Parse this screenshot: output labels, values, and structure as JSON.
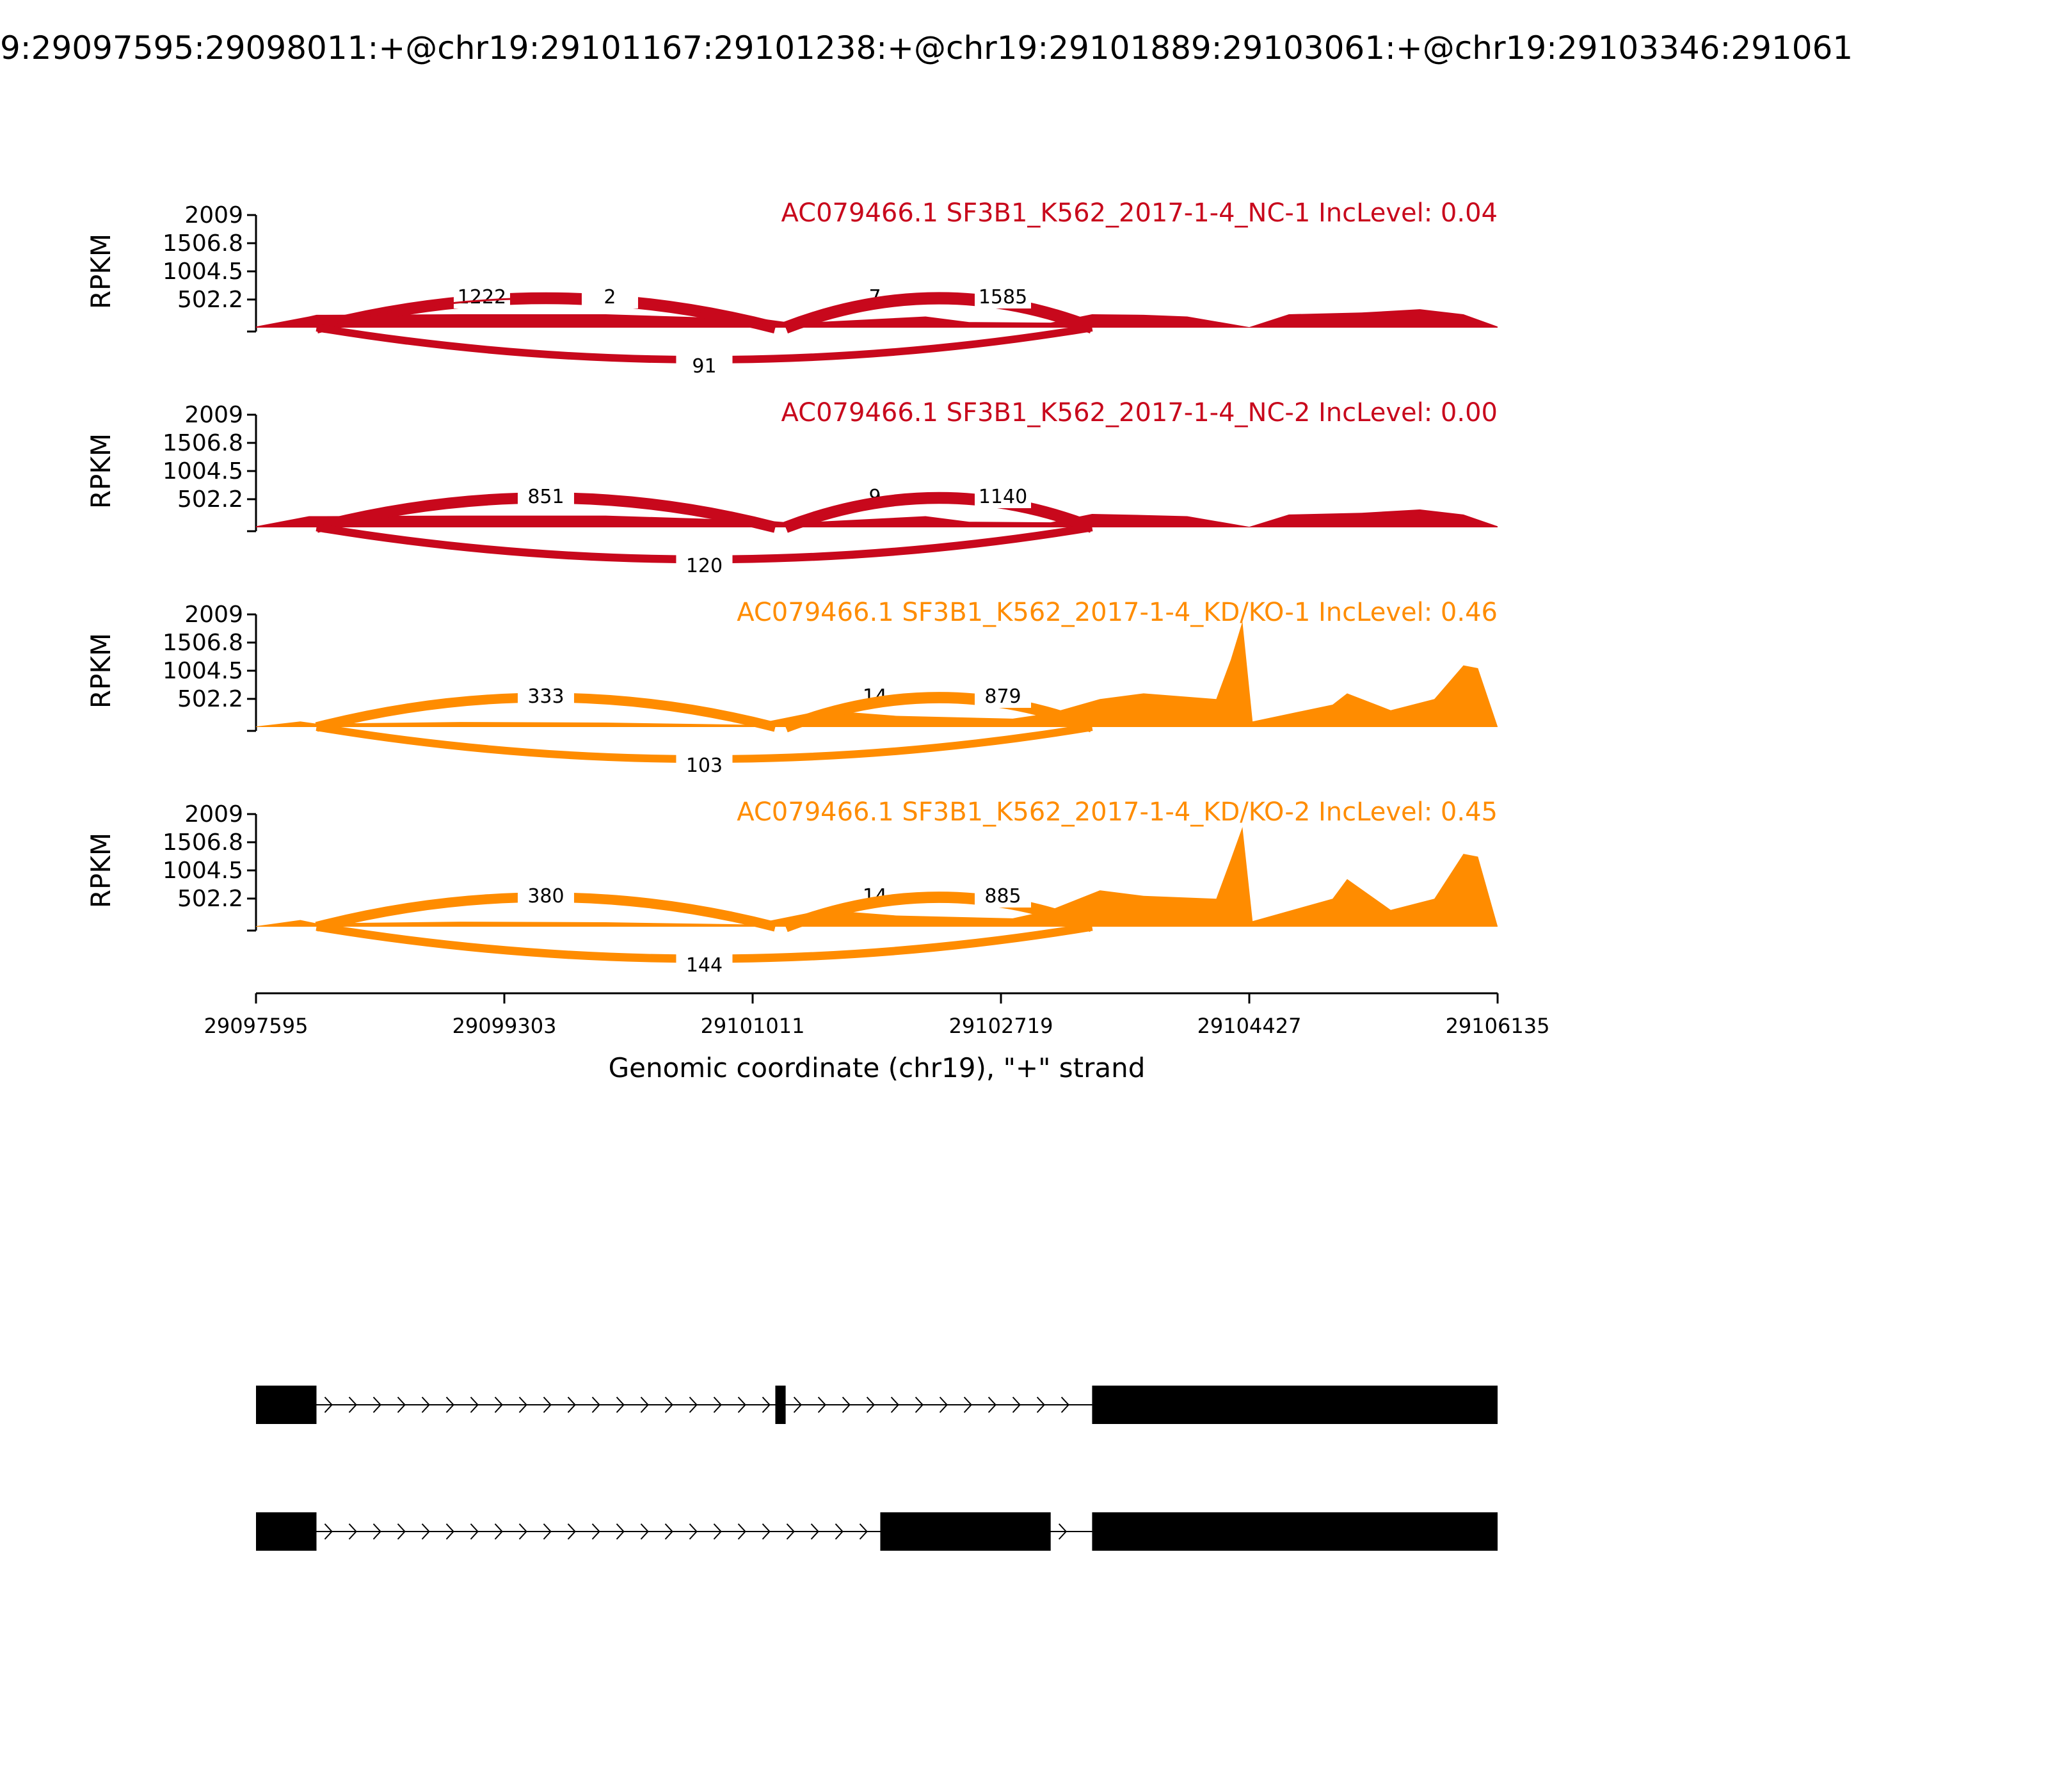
{
  "chart_data": {
    "type": "area",
    "title": "9:29097595:29098011:+@chr19:29101167:29101238:+@chr19:29101889:29103061:+@chr19:29103346:291061",
    "xlabel": "Genomic coordinate (chr19), \"+\" strand",
    "ylabel": "RPKM",
    "xlim": [
      29097595,
      29106135
    ],
    "ylim": [
      0,
      2009
    ],
    "xticks": [
      "29097595",
      "29099303",
      "29101011",
      "29102719",
      "29104427",
      "29106135"
    ],
    "yticks": [
      "502.2",
      "1004.5",
      "1506.8",
      "2009"
    ],
    "grid": false,
    "series": [
      {
        "name": "AC079466.1 SF3B1_K562_2017-1-4_NC-1 IncLevel: 0.04",
        "color": "#c8081c",
        "coverage": [
          [
            29097595,
            20
          ],
          [
            29097960,
            200
          ],
          [
            29098011,
            230
          ],
          [
            29099000,
            240
          ],
          [
            29100000,
            240
          ],
          [
            29101100,
            150
          ],
          [
            29101300,
            80
          ],
          [
            29102200,
            200
          ],
          [
            29102500,
            100
          ],
          [
            29103061,
            90
          ],
          [
            29103346,
            240
          ],
          [
            29103700,
            230
          ],
          [
            29104000,
            200
          ],
          [
            29104427,
            10
          ],
          [
            29104700,
            240
          ],
          [
            29105200,
            270
          ],
          [
            29105600,
            330
          ],
          [
            29105900,
            240
          ],
          [
            29106135,
            20
          ]
        ],
        "junctions": [
          {
            "label": "1222",
            "from": 29098011,
            "to": 29101167,
            "side": "top"
          },
          {
            "label": "2",
            "from": 29098011,
            "to": 29101167,
            "side": "top"
          },
          {
            "label": "7",
            "from": 29101238,
            "to": 29103346,
            "side": "top"
          },
          {
            "label": "1585",
            "from": 29101238,
            "to": 29103346,
            "side": "top"
          },
          {
            "label": "91",
            "from": 29098011,
            "to": 29103346,
            "side": "bottom"
          }
        ]
      },
      {
        "name": "AC079466.1 SF3B1_K562_2017-1-4_NC-2 IncLevel: 0.00",
        "color": "#c8081c",
        "coverage": [
          [
            29097595,
            20
          ],
          [
            29097960,
            200
          ],
          [
            29098011,
            200
          ],
          [
            29099000,
            210
          ],
          [
            29100000,
            210
          ],
          [
            29101100,
            120
          ],
          [
            29101300,
            80
          ],
          [
            29102200,
            200
          ],
          [
            29102500,
            100
          ],
          [
            29103061,
            90
          ],
          [
            29103346,
            240
          ],
          [
            29103700,
            220
          ],
          [
            29104000,
            200
          ],
          [
            29104427,
            10
          ],
          [
            29104700,
            230
          ],
          [
            29105200,
            260
          ],
          [
            29105600,
            320
          ],
          [
            29105900,
            230
          ],
          [
            29106135,
            20
          ]
        ],
        "junctions": [
          {
            "label": "851",
            "from": 29098011,
            "to": 29101167,
            "side": "top"
          },
          {
            "label": "9",
            "from": 29101238,
            "to": 29103346,
            "side": "top"
          },
          {
            "label": "1140",
            "from": 29101238,
            "to": 29103346,
            "side": "top"
          },
          {
            "label": "120",
            "from": 29098011,
            "to": 29103346,
            "side": "bottom"
          }
        ]
      },
      {
        "name": "AC079466.1 SF3B1_K562_2017-1-4_KD/KO-1 IncLevel: 0.46",
        "color": "#ff8c00",
        "coverage": [
          [
            29097595,
            10
          ],
          [
            29097900,
            100
          ],
          [
            29098011,
            60
          ],
          [
            29099000,
            90
          ],
          [
            29100000,
            80
          ],
          [
            29101000,
            40
          ],
          [
            29101500,
            300
          ],
          [
            29102000,
            200
          ],
          [
            29102800,
            150
          ],
          [
            29103061,
            250
          ],
          [
            29103400,
            500
          ],
          [
            29103700,
            600
          ],
          [
            29104200,
            500
          ],
          [
            29104300,
            1200
          ],
          [
            29104380,
            1880
          ],
          [
            29104450,
            100
          ],
          [
            29105000,
            400
          ],
          [
            29105100,
            600
          ],
          [
            29105400,
            300
          ],
          [
            29105700,
            500
          ],
          [
            29105900,
            1100
          ],
          [
            29106000,
            1050
          ],
          [
            29106135,
            10
          ]
        ],
        "junctions": [
          {
            "label": "333",
            "from": 29098011,
            "to": 29101167,
            "side": "top"
          },
          {
            "label": "14",
            "from": 29101238,
            "to": 29103346,
            "side": "top"
          },
          {
            "label": "879",
            "from": 29101238,
            "to": 29103346,
            "side": "top"
          },
          {
            "label": "103",
            "from": 29098011,
            "to": 29103346,
            "side": "bottom"
          }
        ]
      },
      {
        "name": "AC079466.1 SF3B1_K562_2017-1-4_KD/KO-2 IncLevel: 0.45",
        "color": "#ff8c00",
        "coverage": [
          [
            29097595,
            10
          ],
          [
            29097900,
            120
          ],
          [
            29098011,
            60
          ],
          [
            29099000,
            90
          ],
          [
            29100000,
            80
          ],
          [
            29101000,
            40
          ],
          [
            29101500,
            300
          ],
          [
            29102000,
            200
          ],
          [
            29102800,
            150
          ],
          [
            29103061,
            300
          ],
          [
            29103400,
            650
          ],
          [
            29103700,
            550
          ],
          [
            29104200,
            500
          ],
          [
            29104300,
            1200
          ],
          [
            29104380,
            1780
          ],
          [
            29104450,
            100
          ],
          [
            29105000,
            500
          ],
          [
            29105100,
            850
          ],
          [
            29105400,
            300
          ],
          [
            29105700,
            500
          ],
          [
            29105900,
            1300
          ],
          [
            29106000,
            1250
          ],
          [
            29106135,
            10
          ]
        ],
        "junctions": [
          {
            "label": "380",
            "from": 29098011,
            "to": 29101167,
            "side": "top"
          },
          {
            "label": "14",
            "from": 29101238,
            "to": 29103346,
            "side": "top"
          },
          {
            "label": "885",
            "from": 29101238,
            "to": 29103346,
            "side": "top"
          },
          {
            "label": "144",
            "from": 29098011,
            "to": 29103346,
            "side": "bottom"
          }
        ]
      }
    ],
    "isoforms": [
      {
        "exons": [
          [
            29097595,
            29098011
          ],
          [
            29101167,
            29101238
          ],
          [
            29103346,
            29106135
          ]
        ]
      },
      {
        "exons": [
          [
            29097595,
            29098011
          ],
          [
            29101889,
            29103061
          ],
          [
            29103346,
            29106135
          ]
        ]
      }
    ]
  }
}
